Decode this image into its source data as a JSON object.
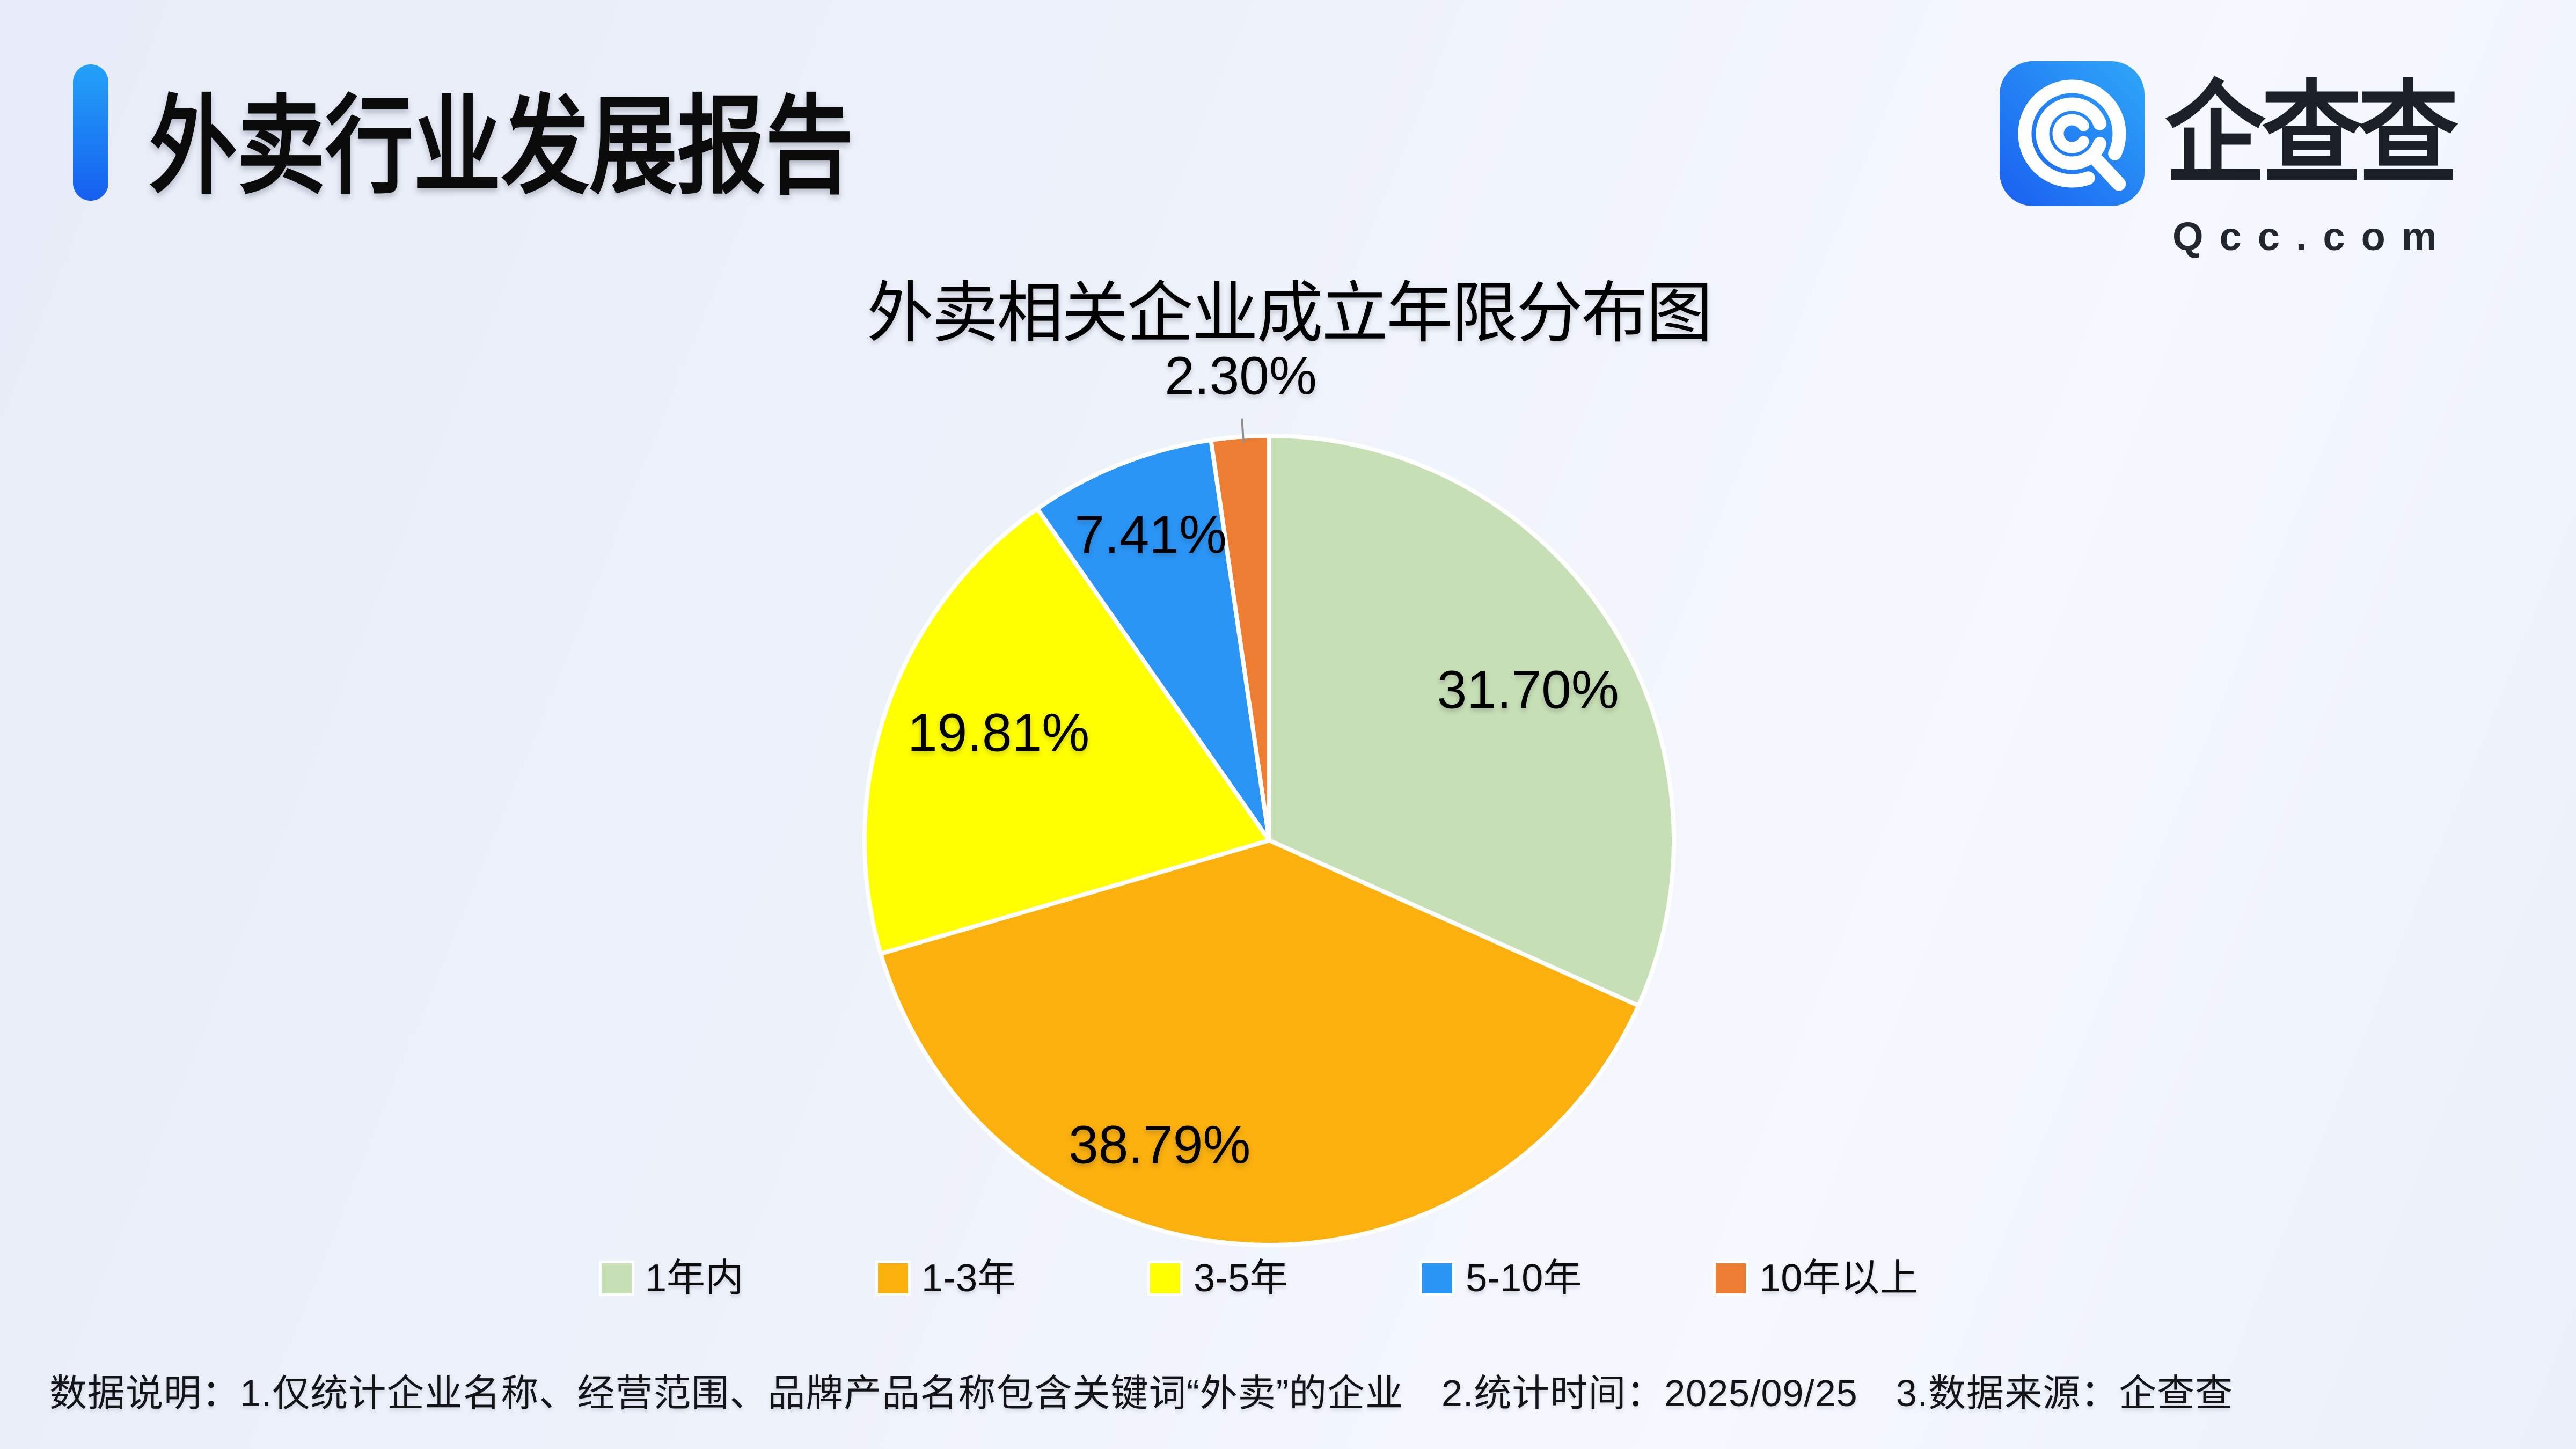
{
  "header": {
    "title": "外卖行业发展报告"
  },
  "logo": {
    "brand": "企查查",
    "domain": "Qcc.com"
  },
  "chart_data": {
    "type": "pie",
    "title": "外卖相关企业成立年限分布图",
    "categories": [
      "1年内",
      "1-3年",
      "3-5年",
      "5-10年",
      "10年以上"
    ],
    "values": [
      31.7,
      38.79,
      19.81,
      7.41,
      2.3
    ],
    "labels": [
      "31.70%",
      "38.79%",
      "19.81%",
      "7.41%",
      "2.30%"
    ],
    "colors": [
      "#c7dfb5",
      "#fbb00d",
      "#ffff00",
      "#2b95f5",
      "#ed7d33"
    ],
    "slice_border_color": "#ffffff",
    "leader_line_color": "#8f8f8f",
    "start_angle_deg": 0,
    "direction": "clockwise",
    "legend_position": "bottom",
    "layout": {
      "center": [
        2365,
        1566
      ],
      "radius": 754,
      "label_font_size": 100,
      "slice_border_width": 8,
      "labels": [
        {
          "angle": 59.8,
          "r": 0.74,
          "placement": "inside"
        },
        {
          "angle": 199.8,
          "r": 0.8,
          "placement": "inside"
        },
        {
          "angle": 291.7,
          "r": 0.72,
          "placement": "inside"
        },
        {
          "angle": 338.8,
          "r": 0.81,
          "placement": "inside"
        },
        {
          "angle": 356.5,
          "r": 1.15,
          "placement": "outside",
          "leader": {
            "angle": 356.3,
            "r1": 1.045,
            "r2": 0.985
          }
        }
      ]
    }
  },
  "footer": {
    "note": "数据说明：1.仅统计企业名称、经营范围、品牌产品名称包含关键词“外卖”的企业　2.统计时间：2025/09/25　3.数据来源：企查查"
  },
  "colors": {
    "background_light": "#f5f8fe",
    "background_shade": "#e7ecf8",
    "accent_bar_light": "#23a2f8",
    "accent_bar_deep": "#155fef",
    "logo_gradient_start": "#1a5ff0",
    "logo_gradient_end": "#2ea7f8",
    "text_primary": "#0b0b0c"
  }
}
